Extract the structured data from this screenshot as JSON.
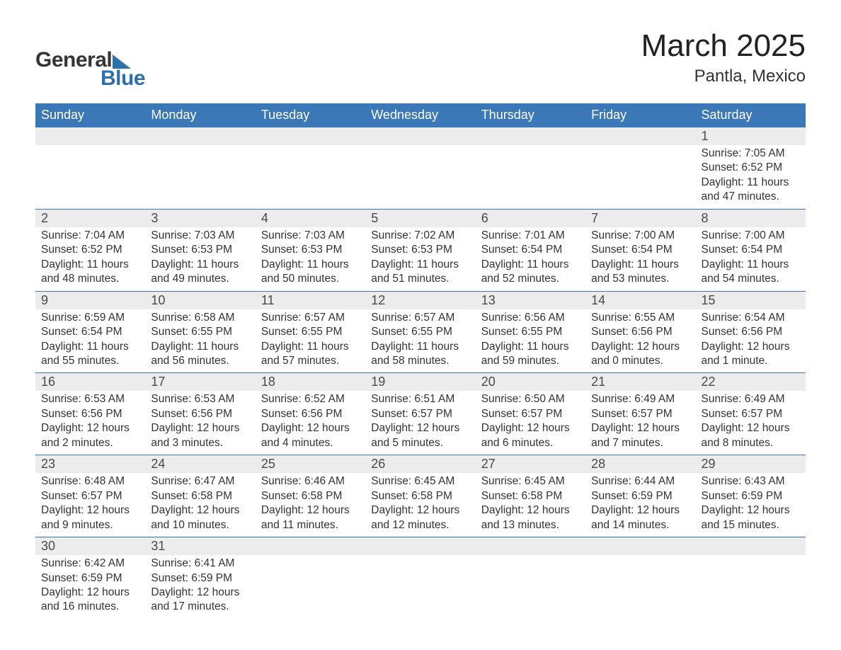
{
  "logo": {
    "text1": "General",
    "text2": "Blue",
    "triangle_color": "#2e6fae"
  },
  "title": "March 2025",
  "location": "Pantla, Mexico",
  "colors": {
    "header_bg": "#3a78b8",
    "header_text": "#ffffff",
    "daynum_bg": "#ececec",
    "row_divider": "#3a78b8",
    "text": "#333333"
  },
  "weekdays": [
    "Sunday",
    "Monday",
    "Tuesday",
    "Wednesday",
    "Thursday",
    "Friday",
    "Saturday"
  ],
  "weeks": [
    [
      null,
      null,
      null,
      null,
      null,
      null,
      {
        "n": "1",
        "sunrise": "7:05 AM",
        "sunset": "6:52 PM",
        "daylight": "11 hours and 47 minutes."
      }
    ],
    [
      {
        "n": "2",
        "sunrise": "7:04 AM",
        "sunset": "6:52 PM",
        "daylight": "11 hours and 48 minutes."
      },
      {
        "n": "3",
        "sunrise": "7:03 AM",
        "sunset": "6:53 PM",
        "daylight": "11 hours and 49 minutes."
      },
      {
        "n": "4",
        "sunrise": "7:03 AM",
        "sunset": "6:53 PM",
        "daylight": "11 hours and 50 minutes."
      },
      {
        "n": "5",
        "sunrise": "7:02 AM",
        "sunset": "6:53 PM",
        "daylight": "11 hours and 51 minutes."
      },
      {
        "n": "6",
        "sunrise": "7:01 AM",
        "sunset": "6:54 PM",
        "daylight": "11 hours and 52 minutes."
      },
      {
        "n": "7",
        "sunrise": "7:00 AM",
        "sunset": "6:54 PM",
        "daylight": "11 hours and 53 minutes."
      },
      {
        "n": "8",
        "sunrise": "7:00 AM",
        "sunset": "6:54 PM",
        "daylight": "11 hours and 54 minutes."
      }
    ],
    [
      {
        "n": "9",
        "sunrise": "6:59 AM",
        "sunset": "6:54 PM",
        "daylight": "11 hours and 55 minutes."
      },
      {
        "n": "10",
        "sunrise": "6:58 AM",
        "sunset": "6:55 PM",
        "daylight": "11 hours and 56 minutes."
      },
      {
        "n": "11",
        "sunrise": "6:57 AM",
        "sunset": "6:55 PM",
        "daylight": "11 hours and 57 minutes."
      },
      {
        "n": "12",
        "sunrise": "6:57 AM",
        "sunset": "6:55 PM",
        "daylight": "11 hours and 58 minutes."
      },
      {
        "n": "13",
        "sunrise": "6:56 AM",
        "sunset": "6:55 PM",
        "daylight": "11 hours and 59 minutes."
      },
      {
        "n": "14",
        "sunrise": "6:55 AM",
        "sunset": "6:56 PM",
        "daylight": "12 hours and 0 minutes."
      },
      {
        "n": "15",
        "sunrise": "6:54 AM",
        "sunset": "6:56 PM",
        "daylight": "12 hours and 1 minute."
      }
    ],
    [
      {
        "n": "16",
        "sunrise": "6:53 AM",
        "sunset": "6:56 PM",
        "daylight": "12 hours and 2 minutes."
      },
      {
        "n": "17",
        "sunrise": "6:53 AM",
        "sunset": "6:56 PM",
        "daylight": "12 hours and 3 minutes."
      },
      {
        "n": "18",
        "sunrise": "6:52 AM",
        "sunset": "6:56 PM",
        "daylight": "12 hours and 4 minutes."
      },
      {
        "n": "19",
        "sunrise": "6:51 AM",
        "sunset": "6:57 PM",
        "daylight": "12 hours and 5 minutes."
      },
      {
        "n": "20",
        "sunrise": "6:50 AM",
        "sunset": "6:57 PM",
        "daylight": "12 hours and 6 minutes."
      },
      {
        "n": "21",
        "sunrise": "6:49 AM",
        "sunset": "6:57 PM",
        "daylight": "12 hours and 7 minutes."
      },
      {
        "n": "22",
        "sunrise": "6:49 AM",
        "sunset": "6:57 PM",
        "daylight": "12 hours and 8 minutes."
      }
    ],
    [
      {
        "n": "23",
        "sunrise": "6:48 AM",
        "sunset": "6:57 PM",
        "daylight": "12 hours and 9 minutes."
      },
      {
        "n": "24",
        "sunrise": "6:47 AM",
        "sunset": "6:58 PM",
        "daylight": "12 hours and 10 minutes."
      },
      {
        "n": "25",
        "sunrise": "6:46 AM",
        "sunset": "6:58 PM",
        "daylight": "12 hours and 11 minutes."
      },
      {
        "n": "26",
        "sunrise": "6:45 AM",
        "sunset": "6:58 PM",
        "daylight": "12 hours and 12 minutes."
      },
      {
        "n": "27",
        "sunrise": "6:45 AM",
        "sunset": "6:58 PM",
        "daylight": "12 hours and 13 minutes."
      },
      {
        "n": "28",
        "sunrise": "6:44 AM",
        "sunset": "6:59 PM",
        "daylight": "12 hours and 14 minutes."
      },
      {
        "n": "29",
        "sunrise": "6:43 AM",
        "sunset": "6:59 PM",
        "daylight": "12 hours and 15 minutes."
      }
    ],
    [
      {
        "n": "30",
        "sunrise": "6:42 AM",
        "sunset": "6:59 PM",
        "daylight": "12 hours and 16 minutes."
      },
      {
        "n": "31",
        "sunrise": "6:41 AM",
        "sunset": "6:59 PM",
        "daylight": "12 hours and 17 minutes."
      },
      null,
      null,
      null,
      null,
      null
    ]
  ],
  "labels": {
    "sunrise": "Sunrise:",
    "sunset": "Sunset:",
    "daylight": "Daylight:"
  }
}
